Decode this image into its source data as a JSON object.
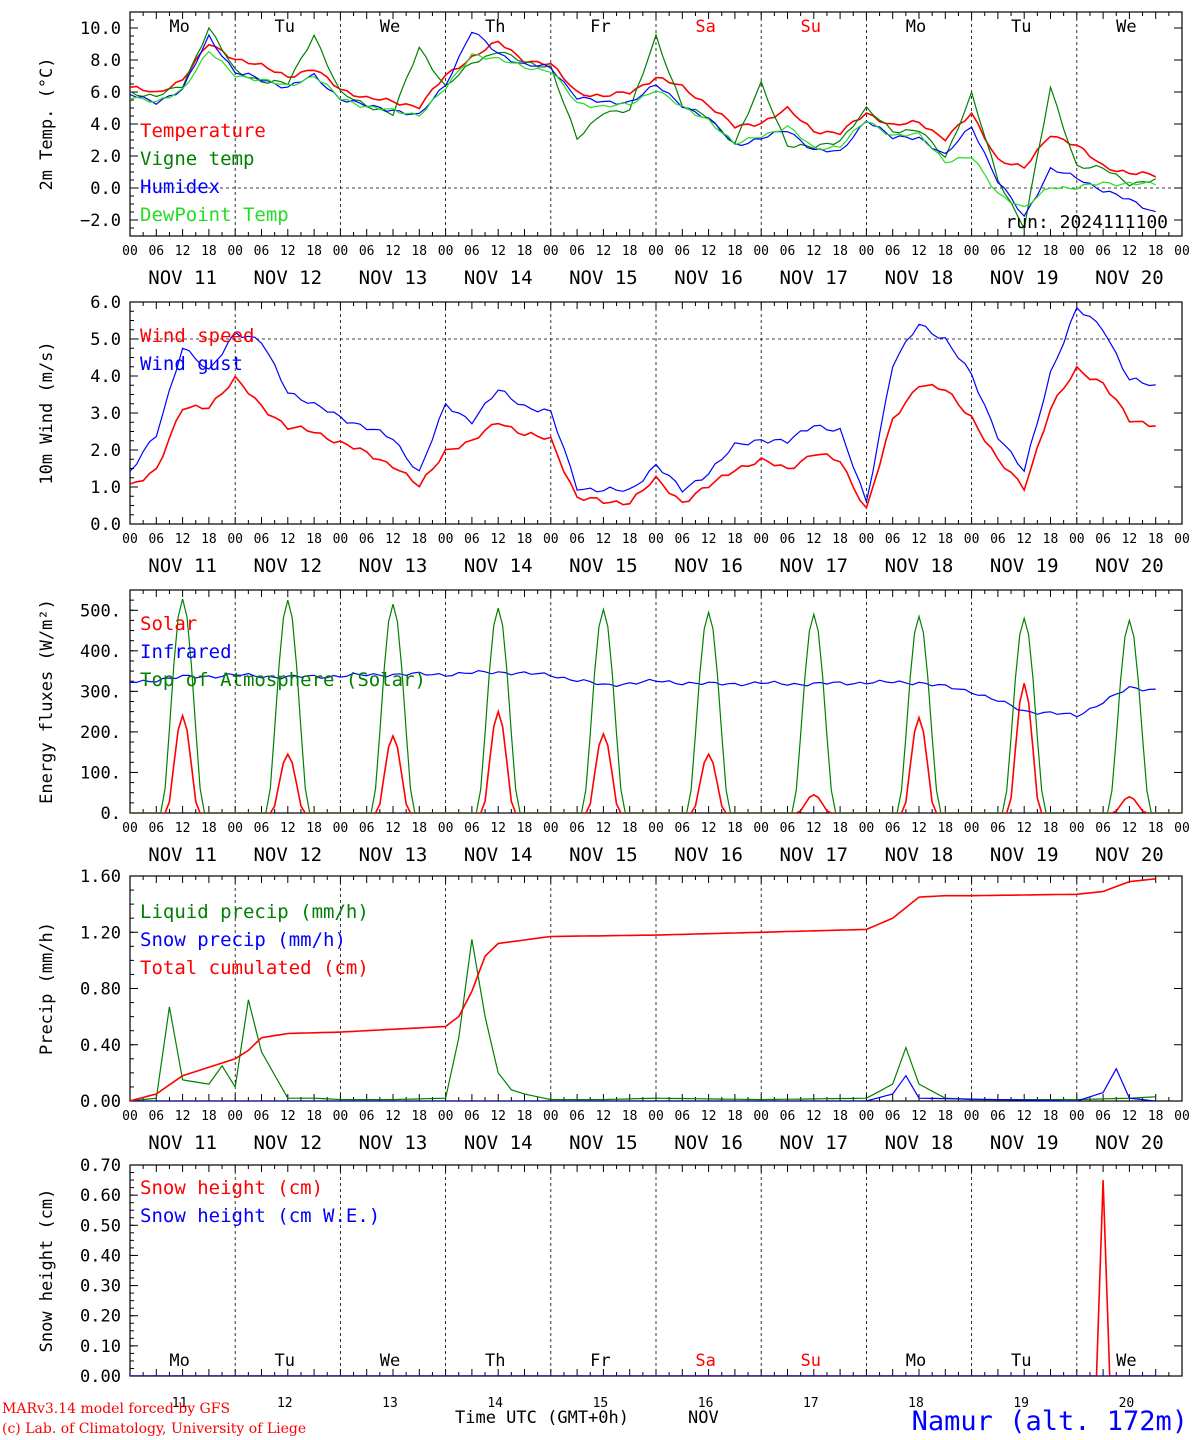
{
  "run_label": "run: 2024111100",
  "station": "Namur (alt. 172m)",
  "credits": [
    "MARv3.14 model forced by GFS",
    "(c) Lab. of Climatology, University of Liege"
  ],
  "time_axis_title": "Time UTC (GMT+0h)",
  "time_axis_month": "NOV",
  "hour_ticks": [
    "00",
    "06",
    "12",
    "18"
  ],
  "day_dates": [
    "NOV 11",
    "NOV 12",
    "NOV 13",
    "NOV 14",
    "NOV 15",
    "NOV 16",
    "NOV 17",
    "NOV 18",
    "NOV 19",
    "NOV 20"
  ],
  "day_numbers": [
    "11",
    "12",
    "13",
    "14",
    "15",
    "16",
    "17",
    "18",
    "19",
    "20"
  ],
  "weekdays": [
    "Mo",
    "Tu",
    "We",
    "Th",
    "Fr",
    "Sa",
    "Su",
    "Mo",
    "Tu",
    "We"
  ],
  "colors": {
    "red": "#ff0000",
    "green": "#008000",
    "blue": "#0000ff",
    "lightgreen": "#22dd22",
    "grid": "#444444",
    "weekend": "#ff0000"
  },
  "chart_data": [
    {
      "type": "line",
      "ylabel": "2m Temp. (°C)",
      "ylim": [
        -3.0,
        11.0
      ],
      "yticks": [
        "10.0",
        "8.0",
        "6.0",
        "4.0",
        "2.0",
        "0.0",
        "−2.0"
      ],
      "ytick_values": [
        10,
        8,
        6,
        4,
        2,
        0,
        -2
      ],
      "dashed_y": [
        0
      ],
      "x_hours": [
        0,
        6,
        12,
        18,
        24,
        30,
        36,
        42,
        48,
        54,
        60,
        66,
        72,
        78,
        84,
        90,
        96,
        102,
        108,
        114,
        120,
        126,
        132,
        138,
        144,
        150,
        156,
        162,
        168,
        174,
        180,
        186,
        192,
        198,
        204,
        210,
        216,
        222,
        228,
        234
      ],
      "series": [
        {
          "name": "Temperature",
          "color": "red",
          "values": [
            6.3,
            5.9,
            6.8,
            9.0,
            8.1,
            7.6,
            7.0,
            7.4,
            6.2,
            5.6,
            5.4,
            5.1,
            7.0,
            8.2,
            9.1,
            8.0,
            7.7,
            6.0,
            5.7,
            6.0,
            6.9,
            6.3,
            5.2,
            3.8,
            4.1,
            4.9,
            3.6,
            3.4,
            4.7,
            3.9,
            4.1,
            3.1,
            4.6,
            1.8,
            1.2,
            3.4,
            2.6,
            1.4,
            0.9,
            0.8
          ]
        },
        {
          "name": "Vigne temp",
          "color": "green",
          "values": [
            6.0,
            5.7,
            6.4,
            10.0,
            7.3,
            6.7,
            6.5,
            9.6,
            5.9,
            5.2,
            4.6,
            8.8,
            6.3,
            7.8,
            8.6,
            7.8,
            7.6,
            3.0,
            4.8,
            4.8,
            9.5,
            5.1,
            4.4,
            2.8,
            6.5,
            2.7,
            2.5,
            3.0,
            4.9,
            3.6,
            3.6,
            1.9,
            5.9,
            0.5,
            -2.4,
            6.2,
            1.4,
            1.2,
            0.3,
            0.5
          ]
        },
        {
          "name": "Humidex",
          "color": "blue",
          "values": [
            5.8,
            5.4,
            6.1,
            9.5,
            7.2,
            6.8,
            6.3,
            7.0,
            5.6,
            5.1,
            4.9,
            4.5,
            6.5,
            9.8,
            8.4,
            7.7,
            7.5,
            5.7,
            5.3,
            5.4,
            6.4,
            5.2,
            4.3,
            2.7,
            3.1,
            3.6,
            2.4,
            2.2,
            4.3,
            3.1,
            3.2,
            2.0,
            3.9,
            0.4,
            -1.8,
            1.2,
            0.6,
            -0.1,
            -0.8,
            -1.5
          ]
        },
        {
          "name": "DewPoint Temp",
          "color": "lightgreen",
          "values": [
            5.7,
            5.3,
            6.2,
            8.5,
            7.1,
            6.7,
            6.4,
            7.0,
            5.6,
            5.1,
            4.8,
            4.6,
            6.2,
            8.4,
            8.0,
            7.6,
            7.3,
            5.3,
            5.1,
            5.2,
            6.2,
            5.0,
            4.3,
            2.7,
            3.3,
            3.8,
            2.5,
            2.6,
            4.2,
            3.3,
            3.3,
            1.7,
            1.9,
            -0.3,
            -1.3,
            0.1,
            0.0,
            0.3,
            0.3,
            0.2
          ]
        }
      ]
    },
    {
      "type": "line",
      "ylabel": "10m Wind (m/s)",
      "ylim": [
        0.0,
        6.0
      ],
      "yticks": [
        "6.0",
        "5.0",
        "4.0",
        "3.0",
        "2.0",
        "1.0",
        "0.0"
      ],
      "ytick_values": [
        6,
        5,
        4,
        3,
        2,
        1,
        0
      ],
      "dashed_y": [
        5
      ],
      "x_hours": [
        0,
        6,
        12,
        18,
        24,
        30,
        36,
        42,
        48,
        54,
        60,
        66,
        72,
        78,
        84,
        90,
        96,
        102,
        108,
        114,
        120,
        126,
        132,
        138,
        144,
        150,
        156,
        162,
        168,
        174,
        180,
        186,
        192,
        198,
        204,
        210,
        216,
        222,
        228,
        234
      ],
      "series": [
        {
          "name": "Wind speed",
          "color": "red",
          "values": [
            1.0,
            1.5,
            3.1,
            3.2,
            3.9,
            3.2,
            2.6,
            2.5,
            2.2,
            1.9,
            1.6,
            1.0,
            2.0,
            2.2,
            2.8,
            2.4,
            2.3,
            0.7,
            0.6,
            0.6,
            1.2,
            0.6,
            1.0,
            1.5,
            1.7,
            1.5,
            1.9,
            1.7,
            0.4,
            2.8,
            3.8,
            3.6,
            2.9,
            1.7,
            1.0,
            3.1,
            4.2,
            3.8,
            2.8,
            2.7
          ]
        },
        {
          "name": "Wind gust",
          "color": "blue",
          "values": [
            1.4,
            2.4,
            4.8,
            4.1,
            5.2,
            4.9,
            3.6,
            3.2,
            2.9,
            2.6,
            2.3,
            1.4,
            3.2,
            2.8,
            3.6,
            3.2,
            3.0,
            1.0,
            0.9,
            0.9,
            1.6,
            0.9,
            1.4,
            2.1,
            2.3,
            2.2,
            2.7,
            2.5,
            0.6,
            4.3,
            5.4,
            5.0,
            4.0,
            2.4,
            1.4,
            4.1,
            5.8,
            5.3,
            3.9,
            3.7
          ]
        }
      ]
    },
    {
      "type": "line",
      "ylabel": "Energy fluxes (W/m²)",
      "ylim": [
        0,
        550
      ],
      "yticks": [
        "500.",
        "400.",
        "300.",
        "200.",
        "100.",
        "0."
      ],
      "ytick_values": [
        500,
        400,
        300,
        200,
        100,
        0
      ],
      "dashed_y": [],
      "series": [
        {
          "name": "Solar",
          "color": "red",
          "peaks": [
            240,
            145,
            190,
            250,
            195,
            145,
            45,
            235,
            320,
            40
          ]
        },
        {
          "name": "Infrared",
          "color": "blue",
          "x_hours": [
            0,
            12,
            24,
            36,
            48,
            60,
            72,
            84,
            96,
            108,
            120,
            132,
            144,
            156,
            168,
            180,
            192,
            204,
            216,
            228,
            234
          ],
          "values": [
            322,
            335,
            340,
            335,
            338,
            342,
            342,
            348,
            340,
            315,
            325,
            318,
            320,
            318,
            322,
            322,
            300,
            252,
            240,
            308,
            305
          ]
        },
        {
          "name": "Top of Atmosphere (Solar)",
          "color": "green",
          "peaks": [
            528,
            525,
            515,
            505,
            502,
            495,
            490,
            485,
            480,
            475
          ]
        }
      ]
    },
    {
      "type": "line",
      "ylabel": "Precip (mm/h)",
      "ylim": [
        0.0,
        1.6
      ],
      "yticks": [
        "1.60",
        "1.20",
        "0.80",
        "0.40",
        "0.00"
      ],
      "ytick_values": [
        1.6,
        1.2,
        0.8,
        0.4,
        0.0
      ],
      "dashed_y": [],
      "series": [
        {
          "name": "Liquid precip (mm/h)",
          "color": "green",
          "x_hours": [
            0,
            6,
            9,
            12,
            18,
            21,
            24,
            27,
            30,
            36,
            42,
            48,
            60,
            72,
            75,
            78,
            81,
            84,
            87,
            90,
            96,
            108,
            120,
            144,
            168,
            174,
            177,
            180,
            186,
            192,
            216,
            228,
            234
          ],
          "values": [
            0.0,
            0.02,
            0.67,
            0.15,
            0.12,
            0.25,
            0.1,
            0.72,
            0.35,
            0.02,
            0.02,
            0.01,
            0.01,
            0.02,
            0.45,
            1.15,
            0.6,
            0.2,
            0.08,
            0.05,
            0.01,
            0.01,
            0.02,
            0.01,
            0.02,
            0.12,
            0.38,
            0.12,
            0.02,
            0.01,
            0.01,
            0.02,
            0.03
          ]
        },
        {
          "name": "Snow precip (mm/h)",
          "color": "blue",
          "x_hours": [
            0,
            168,
            174,
            177,
            180,
            216,
            222,
            225,
            228,
            234
          ],
          "values": [
            0.0,
            0.0,
            0.05,
            0.18,
            0.02,
            0.0,
            0.06,
            0.23,
            0.02,
            0.0
          ]
        },
        {
          "name": "Total cumulated (cm)",
          "color": "red",
          "x_hours": [
            0,
            6,
            12,
            18,
            24,
            27,
            30,
            36,
            48,
            60,
            72,
            75,
            78,
            81,
            84,
            96,
            120,
            144,
            168,
            174,
            180,
            186,
            192,
            216,
            222,
            228,
            234
          ],
          "values": [
            0.0,
            0.05,
            0.18,
            0.24,
            0.3,
            0.36,
            0.45,
            0.48,
            0.49,
            0.51,
            0.53,
            0.6,
            0.78,
            1.03,
            1.12,
            1.17,
            1.18,
            1.2,
            1.22,
            1.3,
            1.45,
            1.46,
            1.46,
            1.47,
            1.49,
            1.56,
            1.58
          ]
        }
      ]
    },
    {
      "type": "line",
      "ylabel": "Snow height (cm)",
      "ylim": [
        0.0,
        0.7
      ],
      "yticks": [
        "0.70",
        "0.60",
        "0.50",
        "0.40",
        "0.30",
        "0.20",
        "0.10",
        "0.00"
      ],
      "ytick_values": [
        0.7,
        0.6,
        0.5,
        0.4,
        0.3,
        0.2,
        0.1,
        0.0
      ],
      "dashed_y": [],
      "series": [
        {
          "name": "Snow height (cm)",
          "color": "red",
          "x_hours": [
            0,
            221,
            222,
            223,
            234
          ],
          "values": [
            0.0,
            0.0,
            0.65,
            0.0,
            0.0
          ]
        },
        {
          "name": "Snow height (cm W.E.)",
          "color": "blue",
          "x_hours": [
            0,
            234
          ],
          "values": [
            0.0,
            0.0
          ]
        }
      ]
    }
  ]
}
